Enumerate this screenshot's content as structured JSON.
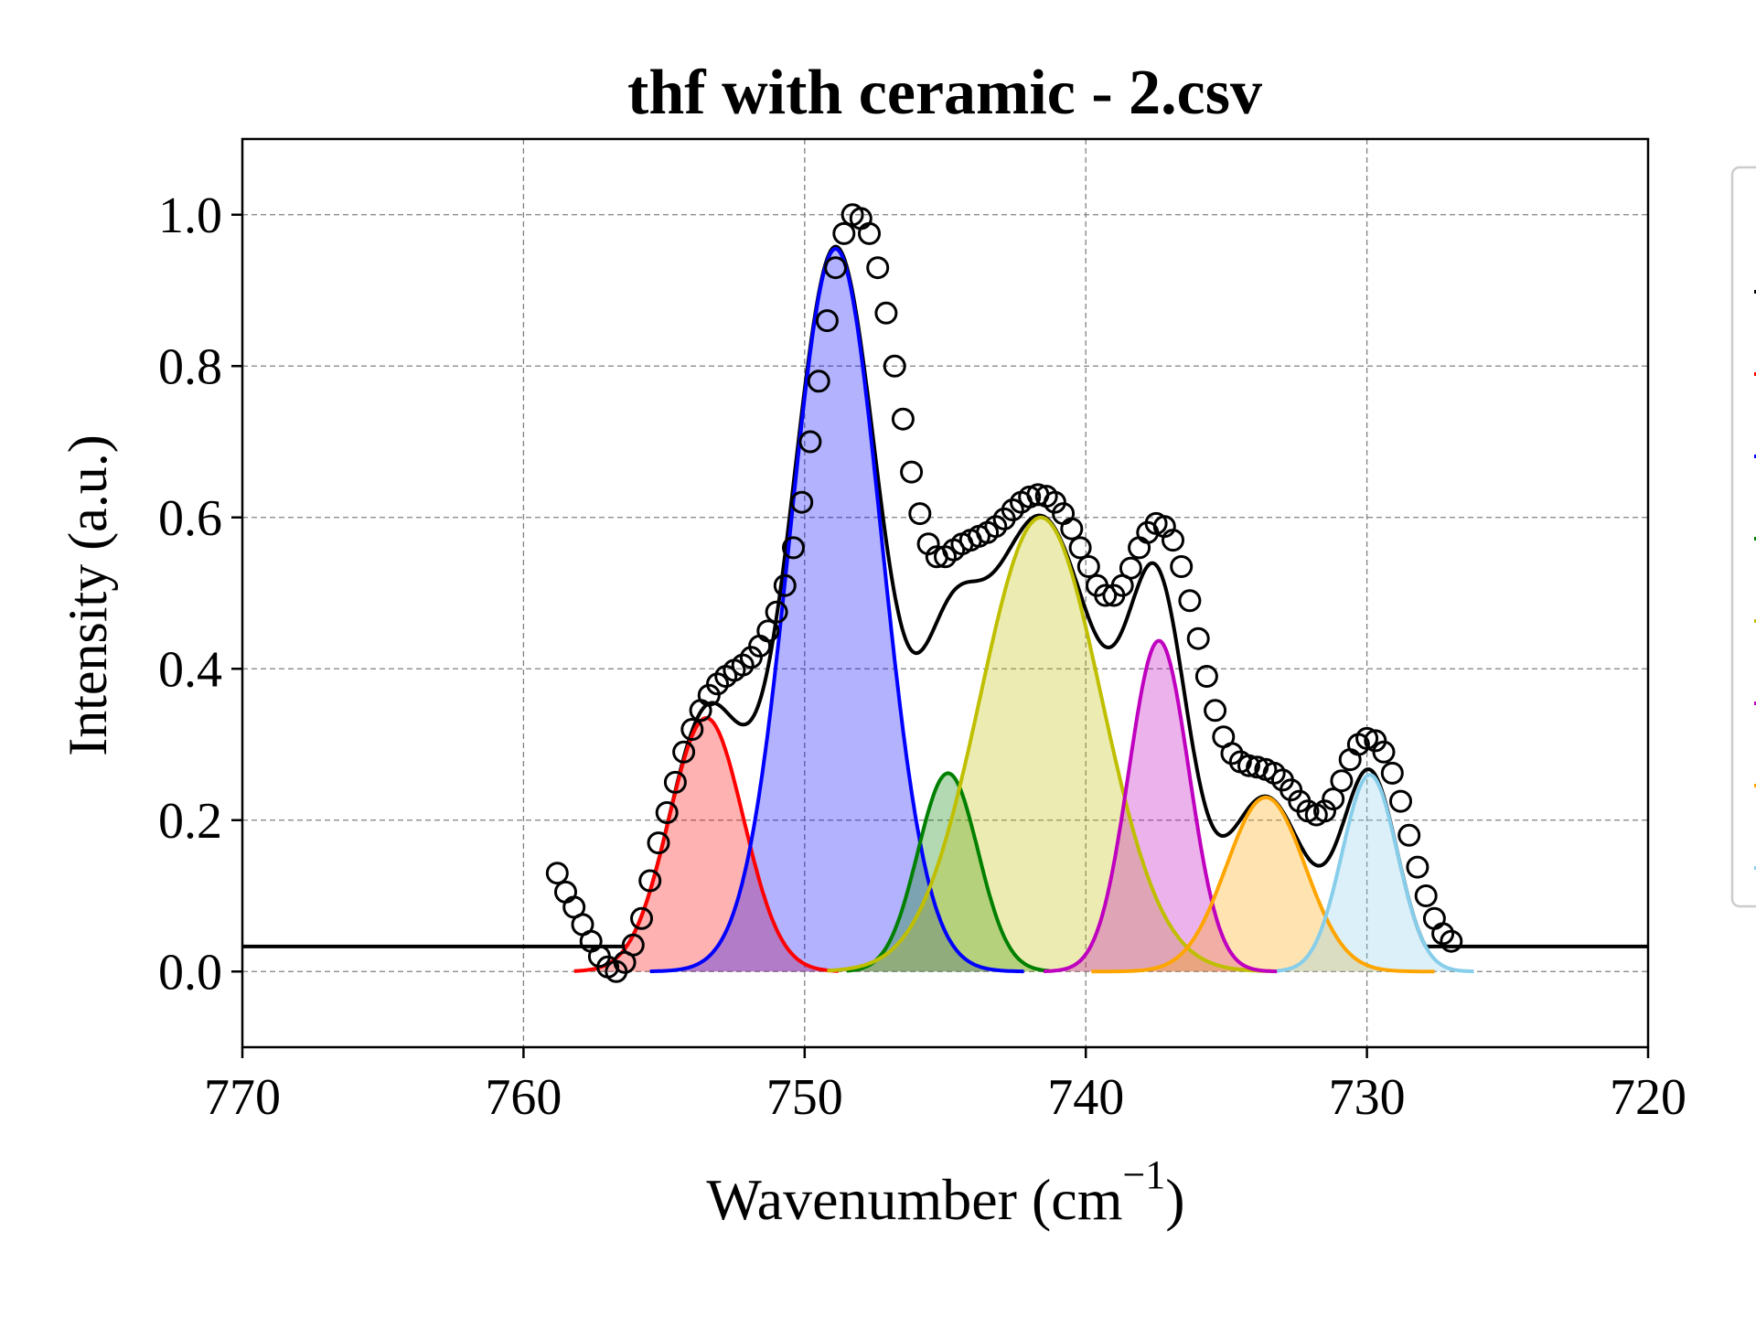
{
  "chart_data": {
    "type": "line",
    "title": "thf with ceramic - 2.csv",
    "xlabel": "Wavenumber (cm",
    "xlabel_sup": "−1",
    "xlabel_close": ")",
    "ylabel": "Intensity (a.u.)",
    "xlim": [
      770,
      720
    ],
    "ylim": [
      -0.1,
      1.1
    ],
    "x_ticks": [
      770,
      760,
      750,
      740,
      730,
      720
    ],
    "y_ticks": [
      0.0,
      0.2,
      0.4,
      0.6,
      0.8,
      1.0
    ],
    "x_tick_labels": [
      "770",
      "760",
      "750",
      "740",
      "730",
      "720"
    ],
    "y_tick_labels": [
      "0.0",
      "0.2",
      "0.4",
      "0.6",
      "0.8",
      "1.0"
    ],
    "grid": true,
    "baseline": 0.033,
    "fit_range": [
      758.0,
      727.0
    ],
    "fit_flat_range": [
      770,
      720
    ],
    "legend_location": "right",
    "observed": {
      "marker": "open-circle",
      "color": "#000000",
      "points": [
        [
          758.8,
          0.13
        ],
        [
          758.5,
          0.105
        ],
        [
          758.2,
          0.085
        ],
        [
          757.9,
          0.062
        ],
        [
          757.6,
          0.04
        ],
        [
          757.3,
          0.02
        ],
        [
          757.0,
          0.006
        ],
        [
          756.7,
          0.0
        ],
        [
          756.4,
          0.012
        ],
        [
          756.1,
          0.035
        ],
        [
          755.8,
          0.07
        ],
        [
          755.5,
          0.12
        ],
        [
          755.2,
          0.17
        ],
        [
          754.9,
          0.21
        ],
        [
          754.6,
          0.25
        ],
        [
          754.3,
          0.29
        ],
        [
          754.0,
          0.32
        ],
        [
          753.7,
          0.345
        ],
        [
          753.4,
          0.365
        ],
        [
          753.1,
          0.38
        ],
        [
          752.8,
          0.39
        ],
        [
          752.5,
          0.398
        ],
        [
          752.2,
          0.405
        ],
        [
          751.9,
          0.415
        ],
        [
          751.6,
          0.43
        ],
        [
          751.3,
          0.45
        ],
        [
          751.0,
          0.475
        ],
        [
          750.7,
          0.51
        ],
        [
          750.4,
          0.56
        ],
        [
          750.1,
          0.62
        ],
        [
          749.8,
          0.7
        ],
        [
          749.5,
          0.78
        ],
        [
          749.2,
          0.86
        ],
        [
          748.9,
          0.93
        ],
        [
          748.6,
          0.975
        ],
        [
          748.3,
          1.0
        ],
        [
          748.0,
          0.995
        ],
        [
          747.7,
          0.975
        ],
        [
          747.4,
          0.93
        ],
        [
          747.1,
          0.87
        ],
        [
          746.8,
          0.8
        ],
        [
          746.5,
          0.73
        ],
        [
          746.2,
          0.66
        ],
        [
          745.9,
          0.605
        ],
        [
          745.6,
          0.565
        ],
        [
          745.3,
          0.548
        ],
        [
          745.0,
          0.548
        ],
        [
          744.7,
          0.557
        ],
        [
          744.4,
          0.565
        ],
        [
          744.1,
          0.57
        ],
        [
          743.8,
          0.575
        ],
        [
          743.5,
          0.58
        ],
        [
          743.2,
          0.588
        ],
        [
          742.9,
          0.598
        ],
        [
          742.6,
          0.61
        ],
        [
          742.3,
          0.62
        ],
        [
          742.0,
          0.627
        ],
        [
          741.7,
          0.63
        ],
        [
          741.4,
          0.628
        ],
        [
          741.1,
          0.62
        ],
        [
          740.8,
          0.605
        ],
        [
          740.5,
          0.585
        ],
        [
          740.2,
          0.56
        ],
        [
          739.9,
          0.535
        ],
        [
          739.6,
          0.51
        ],
        [
          739.3,
          0.497
        ],
        [
          739.0,
          0.497
        ],
        [
          738.7,
          0.51
        ],
        [
          738.4,
          0.533
        ],
        [
          738.1,
          0.56
        ],
        [
          737.8,
          0.58
        ],
        [
          737.5,
          0.592
        ],
        [
          737.2,
          0.588
        ],
        [
          736.9,
          0.57
        ],
        [
          736.6,
          0.535
        ],
        [
          736.3,
          0.49
        ],
        [
          736.0,
          0.44
        ],
        [
          735.7,
          0.39
        ],
        [
          735.4,
          0.345
        ],
        [
          735.1,
          0.31
        ],
        [
          734.8,
          0.288
        ],
        [
          734.5,
          0.277
        ],
        [
          734.2,
          0.272
        ],
        [
          733.9,
          0.27
        ],
        [
          733.6,
          0.267
        ],
        [
          733.3,
          0.262
        ],
        [
          733.0,
          0.253
        ],
        [
          732.7,
          0.24
        ],
        [
          732.4,
          0.225
        ],
        [
          732.1,
          0.212
        ],
        [
          731.8,
          0.207
        ],
        [
          731.5,
          0.212
        ],
        [
          731.2,
          0.228
        ],
        [
          730.9,
          0.252
        ],
        [
          730.6,
          0.28
        ],
        [
          730.3,
          0.3
        ],
        [
          730.0,
          0.308
        ],
        [
          729.7,
          0.305
        ],
        [
          729.4,
          0.29
        ],
        [
          729.1,
          0.262
        ],
        [
          728.8,
          0.225
        ],
        [
          728.5,
          0.18
        ],
        [
          728.2,
          0.138
        ],
        [
          727.9,
          0.1
        ],
        [
          727.6,
          0.07
        ],
        [
          727.3,
          0.05
        ],
        [
          727.0,
          0.04
        ]
      ]
    },
    "fit": {
      "color": "#000000"
    },
    "series": [
      {
        "color": "#ff0000",
        "fill": "#ffb2b2",
        "center": 753.5,
        "amplitude": 0.335,
        "sigma": 1.32,
        "range": [
          758.2,
          748.8
        ]
      },
      {
        "color": "#0000ff",
        "fill": "#b2b2ff",
        "center": 748.9,
        "amplitude": 0.955,
        "sigma": 1.62,
        "range": [
          755.5,
          742.2
        ]
      },
      {
        "color": "#008000",
        "fill": "#b2d8b2",
        "center": 744.9,
        "amplitude": 0.262,
        "sigma": 1.07,
        "range": [
          748.5,
          741.3
        ]
      },
      {
        "color": "#bfbf00",
        "fill": "#ebebb2",
        "center": 741.6,
        "amplitude": 0.6,
        "sigma": 2.15,
        "range": [
          749.2,
          733.2
        ]
      },
      {
        "color": "#bf00bf",
        "fill": "#ebb2eb",
        "center": 737.4,
        "amplitude": 0.437,
        "sigma": 1.07,
        "range": [
          741.5,
          733.2
        ]
      },
      {
        "color": "#ffa500",
        "fill": "#ffe4b2",
        "center": 733.6,
        "amplitude": 0.23,
        "sigma": 1.4,
        "range": [
          739.8,
          727.6
        ]
      },
      {
        "color": "#87ceeb",
        "fill": "#dbf0f9",
        "center": 729.9,
        "amplitude": 0.26,
        "sigma": 0.98,
        "range": [
          733.2,
          726.2
        ]
      }
    ]
  }
}
